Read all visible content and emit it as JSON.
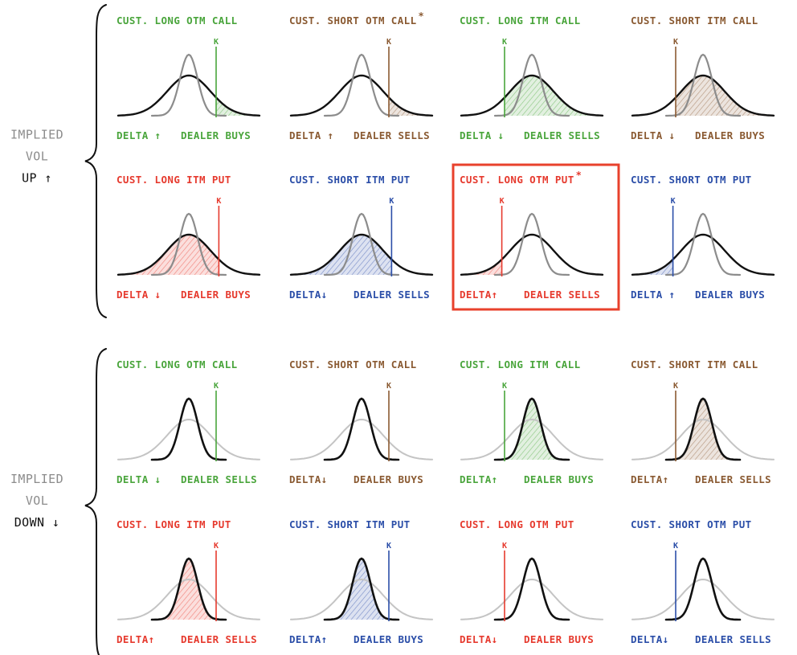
{
  "colors": {
    "green": "#4aa53c",
    "brown": "#8a5a32",
    "red": "#e63a2e",
    "blue": "#2b4ea8",
    "black": "#111111",
    "gray": "#8c8c8c",
    "light_gray": "#c4c4c4",
    "highlight": "#e8412c"
  },
  "strike_label": "K",
  "sections": [
    {
      "id": "vol-up",
      "side_label": [
        "IMPLIED",
        "VOL",
        "UP ↑"
      ],
      "sharp": "old",
      "rows": [
        [
          {
            "title": "CUST. LONG OTM CALL",
            "color": "green",
            "strike": 1.0,
            "shade": "right",
            "bottom_left": "DELTA ↑",
            "bottom_right": "DEALER BUYS"
          },
          {
            "title": "CUST. SHORT OTM CALL",
            "mark": "*",
            "color": "brown",
            "strike": 1.0,
            "shade": "right",
            "bottom_left": "DELTA ↑",
            "bottom_right": "DEALER SELLS"
          },
          {
            "title": "CUST. LONG ITM CALL",
            "color": "green",
            "strike": -1.0,
            "shade": "right",
            "bottom_left": "DELTA ↓",
            "bottom_right": "DEALER SELLS"
          },
          {
            "title": "CUST. SHORT ITM CALL",
            "color": "brown",
            "strike": -1.0,
            "shade": "right",
            "bottom_left": "DELTA ↓",
            "bottom_right": "DEALER BUYS"
          }
        ],
        [
          {
            "title": "CUST. LONG ITM PUT",
            "color": "red",
            "strike": 1.1,
            "shade": "left",
            "bottom_left": "DELTA ↓",
            "bottom_right": "DEALER BUYS"
          },
          {
            "title": "CUST. SHORT ITM PUT",
            "color": "blue",
            "strike": 1.1,
            "shade": "left",
            "bottom_left": "DELTA↓",
            "bottom_right": "DEALER SELLS"
          },
          {
            "title": "CUST. LONG OTM PUT",
            "mark": "*",
            "color": "red",
            "strike": -1.1,
            "shade": "left",
            "bottom_left": "DELTA↑",
            "bottom_right": "DEALER SELLS",
            "highlight": true
          },
          {
            "title": "CUST. SHORT OTM PUT",
            "color": "blue",
            "strike": -1.1,
            "shade": "left",
            "bottom_left": "DELTA ↑",
            "bottom_right": "DEALER BUYS"
          }
        ]
      ]
    },
    {
      "id": "vol-down",
      "side_label": [
        "IMPLIED",
        "VOL",
        "DOWN ↓"
      ],
      "sharp": "new",
      "rows": [
        [
          {
            "title": "CUST. LONG OTM CALL",
            "color": "green",
            "strike": 1.0,
            "shade": "right",
            "bottom_left": "DELTA ↓",
            "bottom_right": "DEALER SELLS"
          },
          {
            "title": "CUST. SHORT OTM CALL",
            "color": "brown",
            "strike": 1.0,
            "shade": "right",
            "bottom_left": "DELTA↓",
            "bottom_right": "DEALER BUYS"
          },
          {
            "title": "CUST. LONG ITM CALL",
            "color": "green",
            "strike": -1.0,
            "shade": "right",
            "bottom_left": "DELTA↑",
            "bottom_right": "DEALER BUYS"
          },
          {
            "title": "CUST. SHORT ITM CALL",
            "color": "brown",
            "strike": -1.0,
            "shade": "right",
            "bottom_left": "DELTA↑",
            "bottom_right": "DEALER SELLS"
          }
        ],
        [
          {
            "title": "CUST. LONG ITM PUT",
            "color": "red",
            "strike": 1.0,
            "shade": "left",
            "bottom_left": "DELTA↑",
            "bottom_right": "DEALER SELLS"
          },
          {
            "title": "CUST. SHORT ITM PUT",
            "color": "blue",
            "strike": 1.0,
            "shade": "left",
            "bottom_left": "DELTA↑",
            "bottom_right": "DEALER BUYS"
          },
          {
            "title": "CUST. LONG OTM PUT",
            "color": "red",
            "strike": -1.0,
            "shade": "left",
            "bottom_left": "DELTA↓",
            "bottom_right": "DEALER BUYS"
          },
          {
            "title": "CUST. SHORT OTM PUT",
            "color": "blue",
            "strike": -1.0,
            "shade": "left",
            "bottom_left": "DELTA↓",
            "bottom_right": "DEALER SELLS"
          }
        ]
      ]
    }
  ]
}
